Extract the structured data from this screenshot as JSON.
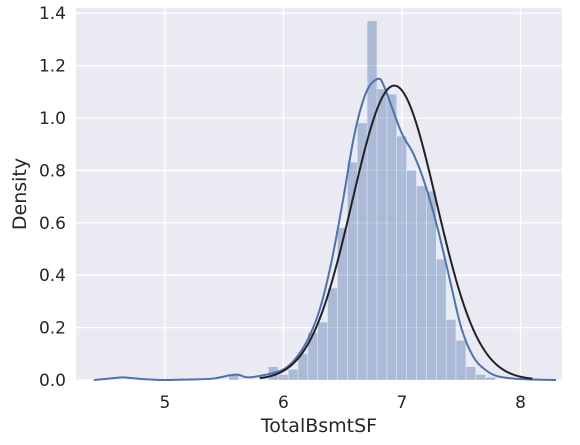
{
  "chart_data": {
    "type": "histogram",
    "title": "",
    "xlabel": "TotalBsmtSF",
    "ylabel": "Density",
    "xlim": [
      4.25,
      8.35
    ],
    "ylim": [
      0,
      1.42
    ],
    "xticks": [
      5,
      6,
      7,
      8
    ],
    "yticks": [
      0.0,
      0.2,
      0.4,
      0.6,
      0.8,
      1.0,
      1.2,
      1.4
    ],
    "grid": true,
    "style": "seaborn-darkgrid",
    "colors": {
      "background": "#eaeaf2",
      "grid": "#ffffff",
      "hist": "#4c72b0",
      "kde": "#4c72b0",
      "normal_fit": "#222222"
    },
    "series": [
      {
        "kind": "histogram",
        "bin_width": 0.0833,
        "bins": [
          {
            "x0": 5.542,
            "x1": 5.625,
            "density": 0.02
          },
          {
            "x0": 5.875,
            "x1": 5.958,
            "density": 0.05
          },
          {
            "x0": 5.958,
            "x1": 6.042,
            "density": 0.02
          },
          {
            "x0": 6.042,
            "x1": 6.125,
            "density": 0.04
          },
          {
            "x0": 6.125,
            "x1": 6.208,
            "density": 0.1
          },
          {
            "x0": 6.208,
            "x1": 6.292,
            "density": 0.18
          },
          {
            "x0": 6.292,
            "x1": 6.375,
            "density": 0.22
          },
          {
            "x0": 6.375,
            "x1": 6.458,
            "density": 0.35
          },
          {
            "x0": 6.458,
            "x1": 6.542,
            "density": 0.58
          },
          {
            "x0": 6.542,
            "x1": 6.625,
            "density": 0.83
          },
          {
            "x0": 6.625,
            "x1": 6.708,
            "density": 0.98
          },
          {
            "x0": 6.708,
            "x1": 6.792,
            "density": 1.37
          },
          {
            "x0": 6.792,
            "x1": 6.875,
            "density": 1.11
          },
          {
            "x0": 6.875,
            "x1": 6.958,
            "density": 1.09
          },
          {
            "x0": 6.958,
            "x1": 7.042,
            "density": 0.93
          },
          {
            "x0": 7.042,
            "x1": 7.125,
            "density": 0.8
          },
          {
            "x0": 7.125,
            "x1": 7.208,
            "density": 0.74
          },
          {
            "x0": 7.208,
            "x1": 7.292,
            "density": 0.72
          },
          {
            "x0": 7.292,
            "x1": 7.375,
            "density": 0.46
          },
          {
            "x0": 7.375,
            "x1": 7.458,
            "density": 0.23
          },
          {
            "x0": 7.458,
            "x1": 7.542,
            "density": 0.15
          },
          {
            "x0": 7.542,
            "x1": 7.625,
            "density": 0.05
          },
          {
            "x0": 7.625,
            "x1": 7.708,
            "density": 0.02
          },
          {
            "x0": 7.708,
            "x1": 7.792,
            "density": 0.01
          }
        ]
      },
      {
        "kind": "kde",
        "x": [
          4.4,
          4.55,
          4.65,
          4.8,
          5.0,
          5.2,
          5.4,
          5.55,
          5.62,
          5.7,
          5.85,
          6.0,
          6.1,
          6.2,
          6.3,
          6.4,
          6.5,
          6.6,
          6.7,
          6.8,
          6.85,
          6.9,
          7.0,
          7.1,
          7.2,
          7.3,
          7.4,
          7.5,
          7.6,
          7.7,
          7.8,
          7.95,
          8.1,
          8.3
        ],
        "y": [
          0.0,
          0.006,
          0.01,
          0.004,
          0.0,
          0.002,
          0.005,
          0.018,
          0.02,
          0.01,
          0.02,
          0.04,
          0.08,
          0.15,
          0.26,
          0.44,
          0.68,
          0.94,
          1.1,
          1.15,
          1.12,
          1.06,
          0.94,
          0.86,
          0.74,
          0.58,
          0.39,
          0.2,
          0.09,
          0.04,
          0.015,
          0.005,
          0.002,
          0.0
        ]
      },
      {
        "kind": "normal_fit",
        "mean": 6.935,
        "std": 0.355
      }
    ]
  }
}
